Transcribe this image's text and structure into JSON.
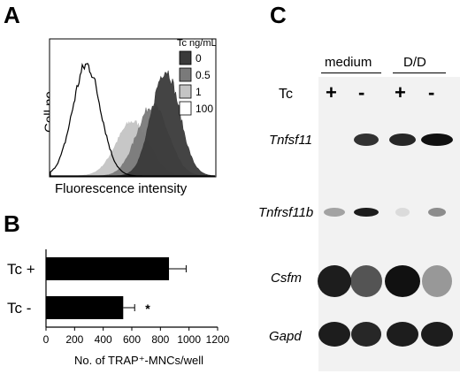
{
  "panels": {
    "a": {
      "letter": "A",
      "ylabel": "Cell no.",
      "xlabel": "Fluorescence intensity",
      "legend_title": "Tc ng/mL",
      "legend": [
        {
          "label": "0",
          "color": "#3a3a3a"
        },
        {
          "label": "0.5",
          "color": "#7a7a7a"
        },
        {
          "label": "1",
          "color": "#c4c4c4"
        },
        {
          "label": "100",
          "color": "#ffffff"
        }
      ]
    },
    "b": {
      "letter": "B",
      "xlabel": "No. of TRAP⁺-MNCs/well",
      "significance_mark": "*"
    },
    "c": {
      "letter": "C",
      "group_labels": [
        "medium",
        "D/D"
      ],
      "tc_label": "Tc",
      "lane_signs": [
        "+",
        "-",
        "+",
        "-"
      ],
      "gene_labels": [
        "Tnfsf11",
        "Tnfrsf11b",
        "Csfm",
        "Gapd"
      ]
    }
  },
  "chart_data": [
    {
      "type": "area",
      "xlabel": "Fluorescence intensity",
      "ylabel": "Cell no.",
      "legend_title": "Tc ng/mL",
      "series": [
        {
          "name": "0",
          "color": "#3a3a3a"
        },
        {
          "name": "0.5",
          "color": "#7a7a7a"
        },
        {
          "name": "1",
          "color": "#c4c4c4"
        },
        {
          "name": "100",
          "color": "#ffffff"
        }
      ]
    },
    {
      "type": "bar",
      "orientation": "horizontal",
      "categories": [
        "Tc +",
        "Tc -"
      ],
      "values": [
        860,
        540
      ],
      "errors": [
        120,
        80
      ],
      "xlabel": "No. of TRAP⁺-MNCs/well",
      "xlim": [
        0,
        1200
      ],
      "xticks": [
        "0",
        "200",
        "400",
        "600",
        "800",
        "1000",
        "1200"
      ]
    }
  ]
}
